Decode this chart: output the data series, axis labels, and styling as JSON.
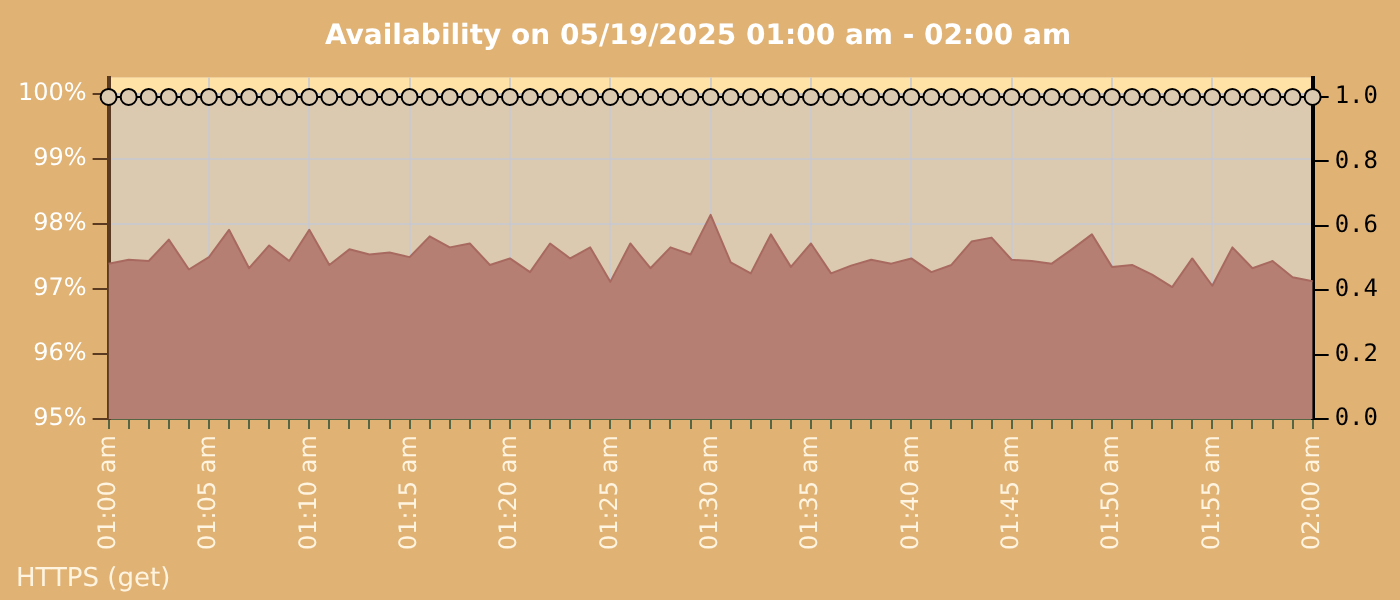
{
  "chart_data": {
    "type": "area",
    "title": "Availability on 05/19/2025 01:00 am - 02:00 am",
    "categories": [
      "01:00 am",
      null,
      null,
      null,
      null,
      "01:05 am",
      null,
      null,
      null,
      null,
      "01:10 am",
      null,
      null,
      null,
      null,
      "01:15 am",
      null,
      null,
      null,
      null,
      "01:20 am",
      null,
      null,
      null,
      null,
      "01:25 am",
      null,
      null,
      null,
      null,
      "01:30 am",
      null,
      null,
      null,
      null,
      "01:35 am",
      null,
      null,
      null,
      null,
      "01:40 am",
      null,
      null,
      null,
      null,
      "01:45 am",
      null,
      null,
      null,
      null,
      "01:50 am",
      null,
      null,
      null,
      null,
      "01:55 am",
      null,
      null,
      null,
      null,
      "02:00 am"
    ],
    "series": [
      {
        "color": "#b67f73",
        "values": [
          97.39,
          97.45,
          97.43,
          97.76,
          97.3,
          97.49,
          97.91,
          97.32,
          97.67,
          97.43,
          97.91,
          97.37,
          97.61,
          97.53,
          97.56,
          97.49,
          97.81,
          97.64,
          97.7,
          97.37,
          97.47,
          97.26,
          97.7,
          97.47,
          97.64,
          97.11,
          97.7,
          97.32,
          97.64,
          97.53,
          98.14,
          97.41,
          97.24,
          97.84,
          97.34,
          97.7,
          97.24,
          97.36,
          97.45,
          97.39,
          97.47,
          97.26,
          97.37,
          97.73,
          97.79,
          97.45,
          97.43,
          97.39,
          97.61,
          97.84,
          97.34,
          97.37,
          97.22,
          97.03,
          97.47,
          97.05,
          97.64,
          97.32,
          97.43,
          97.18,
          97.12
        ]
      },
      {
        "type": "line",
        "axis": "y2",
        "color": "#000000",
        "marker": "circle",
        "values": [
          1,
          1,
          1,
          1,
          1,
          1,
          1,
          1,
          1,
          1,
          1,
          1,
          1,
          1,
          1,
          1,
          1,
          1,
          1,
          1,
          1,
          1,
          1,
          1,
          1,
          1,
          1,
          1,
          1,
          1,
          1,
          1,
          1,
          1,
          1,
          1,
          1,
          1,
          1,
          1,
          1,
          1,
          1,
          1,
          1,
          1,
          1,
          1,
          1,
          1,
          1,
          1,
          1,
          1,
          1,
          1,
          1,
          1,
          1,
          1,
          1
        ]
      }
    ],
    "ylim": [
      95,
      100.25
    ],
    "yticks": [
      {
        "value": 95,
        "label": "95%"
      },
      {
        "value": 96,
        "label": "96%"
      },
      {
        "value": 97,
        "label": "97%"
      },
      {
        "value": 98,
        "label": "98%"
      },
      {
        "value": 99,
        "label": "99%"
      },
      {
        "value": 100,
        "label": "100%"
      }
    ],
    "y2lim": [
      0,
      1.06
    ],
    "y2ticks": [
      {
        "value": 0,
        "label": "0.0"
      },
      0.2,
      0.4,
      0.6,
      0.8,
      {
        "value": 1,
        "label": "1.0"
      }
    ],
    "bands": [
      {
        "axis": "y",
        "from": 100,
        "to": 100.25,
        "color": "#ffe2a6"
      }
    ],
    "grid": true,
    "annotations": [
      "HTTPS (get)"
    ]
  }
}
